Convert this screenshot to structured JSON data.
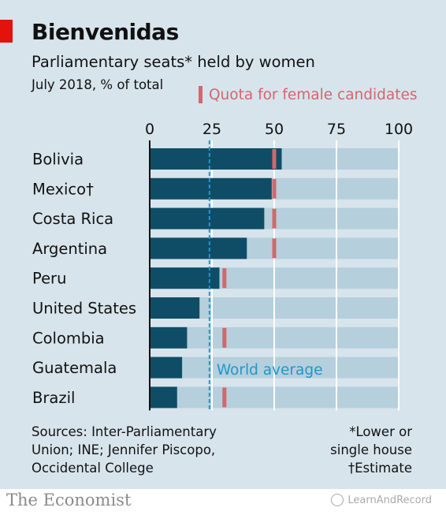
{
  "header": {
    "title": "Bienvenidas",
    "subtitle": "Parliamentary seats* held by women",
    "units": "July 2018, % of total",
    "legend_label": "Quota for female candidates"
  },
  "chart_data": {
    "type": "bar",
    "orientation": "horizontal",
    "categories": [
      "Bolivia",
      "Mexico†",
      "Costa Rica",
      "Argentina",
      "Peru",
      "United States",
      "Colombia",
      "Guatemala",
      "Brazil"
    ],
    "series": [
      {
        "values": [
          53,
          49,
          46,
          39,
          28,
          20,
          15,
          13,
          11
        ]
      }
    ],
    "quota": [
      50,
      50,
      50,
      50,
      30,
      null,
      30,
      null,
      30
    ],
    "quota_label": "Quota for female candidates",
    "reference_line": {
      "label": "World average",
      "value": 24
    },
    "xlim": [
      0,
      100
    ],
    "xticks": [
      0,
      25,
      50,
      75,
      100
    ],
    "xaxis_position": "top",
    "grid": true,
    "legend_placement": "top-right",
    "colors": {
      "bar": "#0f4d66",
      "track": "#b5cfdc",
      "quota": "#d6656d",
      "world_average": "#1f97cb",
      "grid": "#ffffff",
      "background": "#d7e4ec"
    }
  },
  "footer": {
    "sources": [
      "Sources: Inter-Parliamentary",
      "Union; INE; Jennifer Piscopo,",
      "Occidental College"
    ],
    "notes": [
      "*Lower or",
      "single house",
      "†Estimate"
    ],
    "brand": "The Economist",
    "watermark": "LearnAndRecord"
  }
}
